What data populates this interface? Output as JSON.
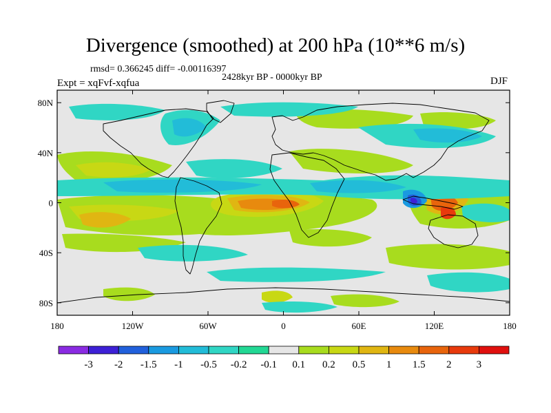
{
  "title": "Divergence (smoothed) at 200 hPa (10**6 m/s)",
  "stats": "rmsd= 0.366245 diff= -0.00116397",
  "period": "2428kyr BP - 0000kyr BP",
  "experiment": "Expt = xqFvf-xqfua",
  "season": "DJF",
  "map": {
    "projection": "cylindrical equidistant",
    "lon_range": [
      -180,
      180
    ],
    "lat_range": [
      -90,
      90
    ],
    "background_color": "#e6e6e6",
    "x_ticks": [
      {
        "label": "180",
        "lon": -180
      },
      {
        "label": "120W",
        "lon": -120
      },
      {
        "label": "60W",
        "lon": -60
      },
      {
        "label": "0",
        "lon": 0
      },
      {
        "label": "60E",
        "lon": 60
      },
      {
        "label": "120E",
        "lon": 120
      },
      {
        "label": "180",
        "lon": 180
      }
    ],
    "y_ticks": [
      {
        "label": "80N",
        "lat": 80
      },
      {
        "label": "40N",
        "lat": 40
      },
      {
        "label": "0",
        "lat": 0
      },
      {
        "label": "40S",
        "lat": -40
      },
      {
        "label": "80S",
        "lat": -80
      }
    ]
  },
  "colorbar": {
    "colors": [
      "#8a2be2",
      "#3d20d6",
      "#2160dc",
      "#1a9ae0",
      "#22bcd8",
      "#30d6c4",
      "#22d894",
      "#e6e6e6",
      "#a8dc1e",
      "#c8d814",
      "#e0b612",
      "#e88a0e",
      "#e8640c",
      "#e83a0c",
      "#e0100e"
    ],
    "labels": [
      "-3",
      "-2",
      "-1.5",
      "-1",
      "-0.5",
      "-0.2",
      "-0.1",
      "0.1",
      "0.2",
      "0.5",
      "1",
      "1.5",
      "2",
      "3"
    ]
  }
}
